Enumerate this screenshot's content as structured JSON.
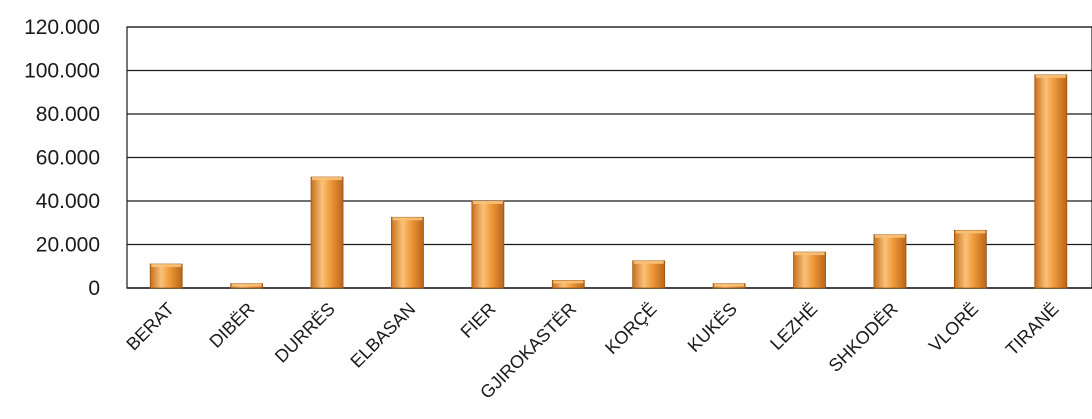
{
  "chart_data": {
    "type": "bar",
    "categories": [
      "BERAT",
      "DIBËR",
      "DURRËS",
      "ELBASAN",
      "FIER",
      "GJIROKASTËR",
      "KORÇË",
      "KUKËS",
      "LEZHË",
      "SHKODËR",
      "VLORË",
      "TIRANË"
    ],
    "values": [
      11000,
      2000,
      51000,
      32500,
      40000,
      3500,
      12500,
      2000,
      16500,
      24500,
      26500,
      98000
    ],
    "yticks": [
      "0",
      "20.000",
      "40.000",
      "60.000",
      "80.000",
      "100.000",
      "120.000"
    ],
    "ylim": [
      0,
      120000
    ],
    "grid": true,
    "legend": "none",
    "title": "",
    "xlabel": "",
    "ylabel": "",
    "colors": {
      "bar_light": "#f9c27a",
      "bar_mid": "#f09a3a",
      "bar_dark": "#c8701c",
      "bar_edge": "#9a5412",
      "grid": "#1a1a1a",
      "text": "#1a1a1a"
    }
  }
}
